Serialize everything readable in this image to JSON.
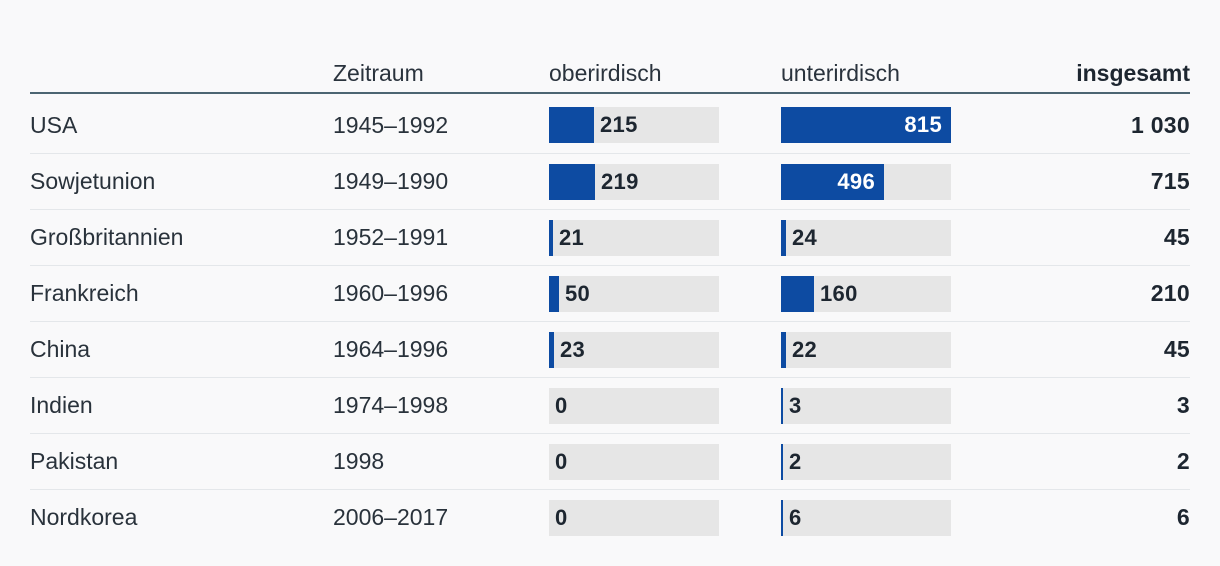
{
  "colors": {
    "background": "#f9f9fa",
    "bar_blue": "#0d4ba2",
    "track_grey": "#e6e6e6",
    "header_rule": "#4c6572",
    "row_separator": "#e4e7ea",
    "text_dark": "#29323b",
    "text_bold": "#1d2630",
    "bar_label_inside": "#ffffff"
  },
  "table": {
    "headers": {
      "country": "",
      "zeitraum": "Zeitraum",
      "oberirdisch": "oberirdisch",
      "unterirdisch": "unterirdisch",
      "insgesamt": "insgesamt"
    },
    "rows": [
      {
        "country": "USA",
        "zeitraum": "1945–1992",
        "oberirdisch": "215",
        "unterirdisch": "815",
        "insgesamt": "1 030"
      },
      {
        "country": "Sowjetunion",
        "zeitraum": "1949–1990",
        "oberirdisch": "219",
        "unterirdisch": "496",
        "insgesamt": "715"
      },
      {
        "country": "Großbritannien",
        "zeitraum": "1952–1991",
        "oberirdisch": "21",
        "unterirdisch": "24",
        "insgesamt": "45"
      },
      {
        "country": "Frankreich",
        "zeitraum": "1960–1996",
        "oberirdisch": "50",
        "unterirdisch": "160",
        "insgesamt": "210"
      },
      {
        "country": "China",
        "zeitraum": "1964–1996",
        "oberirdisch": "23",
        "unterirdisch": "22",
        "insgesamt": "45"
      },
      {
        "country": "Indien",
        "zeitraum": "1974–1998",
        "oberirdisch": "0",
        "unterirdisch": "3",
        "insgesamt": "3"
      },
      {
        "country": "Pakistan",
        "zeitraum": "1998",
        "oberirdisch": "0",
        "unterirdisch": "2",
        "insgesamt": "2"
      },
      {
        "country": "Nordkorea",
        "zeitraum": "2006–2017",
        "oberirdisch": "0",
        "unterirdisch": "6",
        "insgesamt": "6"
      }
    ]
  },
  "chart_data": {
    "type": "bar",
    "orientation": "horizontal",
    "categories": [
      "USA",
      "Sowjetunion",
      "Großbritannien",
      "Frankreich",
      "China",
      "Indien",
      "Pakistan",
      "Nordkorea"
    ],
    "periods": [
      "1945–1992",
      "1949–1990",
      "1952–1991",
      "1960–1996",
      "1964–1996",
      "1974–1998",
      "1998",
      "2006–2017"
    ],
    "series": [
      {
        "name": "oberirdisch",
        "values": [
          215,
          219,
          21,
          50,
          23,
          0,
          0,
          0
        ]
      },
      {
        "name": "unterirdisch",
        "values": [
          815,
          496,
          24,
          160,
          22,
          3,
          2,
          6
        ]
      }
    ],
    "totals": [
      1030,
      715,
      45,
      210,
      45,
      3,
      2,
      6
    ],
    "totals_label": "insgesamt",
    "period_label": "Zeitraum",
    "xlim": [
      0,
      815
    ],
    "grid": false,
    "legend_position": "column-headers",
    "value_labels": "on-bars"
  }
}
